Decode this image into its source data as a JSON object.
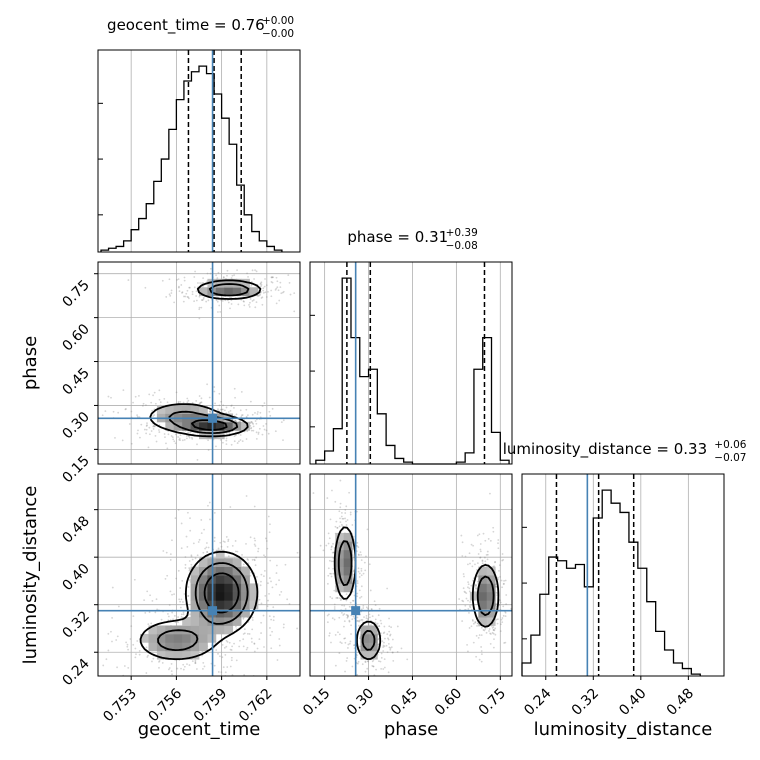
{
  "chart_data": {
    "type": "corner",
    "parameters": [
      "geocent_time",
      "phase",
      "luminosity_distance"
    ],
    "titles": [
      {
        "param": "geocent_time",
        "label": "geocent_time = 0.76",
        "sup": "+0.00",
        "sub": "−0.00"
      },
      {
        "param": "phase",
        "label": "phase = 0.31",
        "sup": "+0.39",
        "sub": "−0.08"
      },
      {
        "param": "luminosity_distance",
        "label": "luminosity_distance = 0.33",
        "sup": "+0.06",
        "sub": "−0.07"
      }
    ],
    "axis_labels": [
      "geocent_time",
      "phase",
      "luminosity_distance"
    ],
    "ranges": {
      "geocent_time": [
        0.7508,
        0.7642
      ],
      "phase": [
        0.1,
        0.79
      ],
      "luminosity_distance": [
        0.2,
        0.54
      ]
    },
    "ticks": {
      "geocent_time": [
        0.753,
        0.756,
        0.759,
        0.762
      ],
      "phase": [
        0.15,
        0.3,
        0.45,
        0.6,
        0.75
      ],
      "luminosity_distance": [
        0.24,
        0.32,
        0.4,
        0.48
      ]
    },
    "tick_labels": {
      "geocent_time": [
        "0.753",
        "0.756",
        "0.759",
        "0.762"
      ],
      "phase": [
        "0.15",
        "0.30",
        "0.45",
        "0.60",
        "0.75"
      ],
      "luminosity_distance": [
        "0.24",
        "0.32",
        "0.40",
        "0.48"
      ]
    },
    "truths": {
      "geocent_time": 0.7584,
      "phase": 0.256,
      "luminosity_distance": 0.31
    },
    "quantiles": {
      "geocent_time": [
        0.7568,
        0.7585,
        0.7603
      ],
      "phase": [
        0.226,
        0.306,
        0.696
      ],
      "luminosity_distance": [
        0.258,
        0.329,
        0.388
      ]
    },
    "histograms": {
      "geocent_time": {
        "edges": [
          0.751,
          0.7515,
          0.752,
          0.7525,
          0.753,
          0.7535,
          0.754,
          0.7545,
          0.755,
          0.7555,
          0.756,
          0.7565,
          0.757,
          0.7575,
          0.758,
          0.7585,
          0.759,
          0.7595,
          0.76,
          0.7605,
          0.761,
          0.7615,
          0.762,
          0.7625,
          0.763
        ],
        "counts": [
          1,
          2,
          3,
          6,
          12,
          18,
          26,
          38,
          50,
          66,
          82,
          92,
          97,
          100,
          96,
          85,
          72,
          58,
          36,
          20,
          11,
          6,
          3,
          1
        ]
      },
      "phase": {
        "edges": [
          0.12,
          0.15,
          0.18,
          0.21,
          0.24,
          0.27,
          0.3,
          0.33,
          0.36,
          0.39,
          0.42,
          0.45,
          0.48,
          0.51,
          0.54,
          0.57,
          0.6,
          0.63,
          0.66,
          0.69,
          0.72,
          0.75,
          0.78
        ],
        "counts": [
          2,
          7,
          19,
          100,
          68,
          47,
          51,
          27,
          10,
          3,
          1,
          0,
          0,
          0,
          0,
          0,
          1,
          6,
          51,
          68,
          17,
          2
        ]
      },
      "luminosity_distance": {
        "edges": [
          0.2,
          0.215,
          0.23,
          0.245,
          0.26,
          0.275,
          0.29,
          0.305,
          0.32,
          0.335,
          0.35,
          0.365,
          0.38,
          0.395,
          0.41,
          0.425,
          0.44,
          0.455,
          0.47,
          0.485,
          0.5
        ],
        "counts": [
          7,
          22,
          44,
          64,
          62,
          58,
          60,
          48,
          85,
          100,
          93,
          88,
          72,
          58,
          40,
          24,
          14,
          7,
          4,
          1
        ]
      }
    },
    "contour_peaks": [
      {
        "x": "geocent_time",
        "y": "phase",
        "modes": [
          {
            "cx": 0.7595,
            "cy": 0.695,
            "sx": 0.0012,
            "sy": 0.018,
            "w": 0.45
          },
          {
            "cx": 0.7585,
            "cy": 0.23,
            "sx": 0.0012,
            "sy": 0.018,
            "w": 0.55
          },
          {
            "cx": 0.7565,
            "cy": 0.26,
            "sx": 0.0015,
            "sy": 0.03,
            "w": 0.3
          }
        ]
      },
      {
        "x": "geocent_time",
        "y": "luminosity_distance",
        "modes": [
          {
            "cx": 0.759,
            "cy": 0.34,
            "sx": 0.0012,
            "sy": 0.035,
            "w": 0.7
          },
          {
            "cx": 0.756,
            "cy": 0.26,
            "sx": 0.0015,
            "sy": 0.02,
            "w": 0.35
          }
        ]
      },
      {
        "x": "phase",
        "y": "luminosity_distance",
        "modes": [
          {
            "cx": 0.22,
            "cy": 0.39,
            "sx": 0.02,
            "sy": 0.035,
            "w": 0.45
          },
          {
            "cx": 0.3,
            "cy": 0.26,
            "sx": 0.025,
            "sy": 0.02,
            "w": 0.35
          },
          {
            "cx": 0.7,
            "cy": 0.335,
            "sx": 0.025,
            "sy": 0.03,
            "w": 0.45
          }
        ]
      }
    ],
    "colors": {
      "hist": "#000000",
      "truth": "#4682b4",
      "grid": "#b0b0b0",
      "quantile": "#000000"
    },
    "grid": true
  }
}
